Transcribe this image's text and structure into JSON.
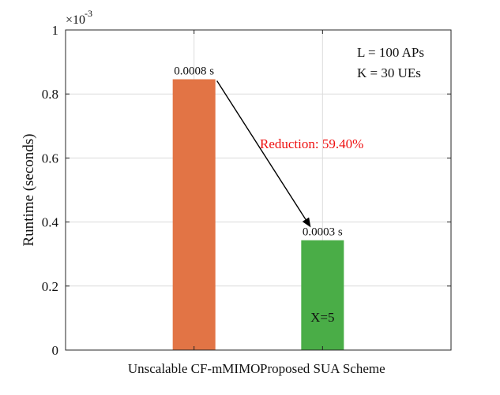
{
  "chart_data": {
    "type": "bar",
    "categories": [
      "Unscalable CF-mMIMO",
      "Proposed SUA Scheme"
    ],
    "values": [
      0.000846,
      0.000343
    ],
    "colors": [
      "#e27445",
      "#4aad47"
    ],
    "data_labels": [
      "0.0008 s",
      "0.0003 s"
    ],
    "inner_labels": [
      "",
      "X=5"
    ],
    "xlabel": "",
    "ylabel": "Runtime (seconds)",
    "ylim": [
      0,
      0.001
    ],
    "yticks": [
      0,
      0.0002,
      0.0004,
      0.0006,
      0.0008,
      0.001
    ],
    "ytick_labels": [
      "0",
      "0.2",
      "0.4",
      "0.6",
      "0.8",
      "1"
    ],
    "y_scale_base": "×10",
    "y_scale_exponent": "-3",
    "grid": true,
    "legend_lines": [
      "L = 100 APs",
      "K = 30 UEs"
    ],
    "legend_placement": "top-right",
    "annotation": {
      "text": "Reduction: 59.40%",
      "color": "#ee1111",
      "arrow_from": "bar 1 top",
      "arrow_to": "bar 2 top"
    }
  }
}
